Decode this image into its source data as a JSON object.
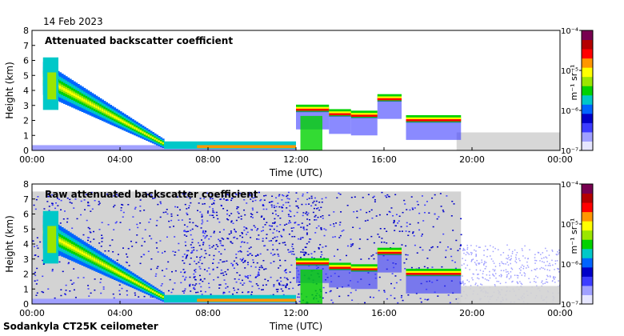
{
  "header": {
    "date": "14 Feb 2023"
  },
  "footer": {
    "instrument": "Sodankyla CT25K ceilometer"
  },
  "colors": {
    "frame": "#000000",
    "noise": "#d3d3d3",
    "colormap": [
      "#e6e6ff",
      "#a0a0ff",
      "#3c3cff",
      "#0000c8",
      "#0064ff",
      "#00c8c8",
      "#00d200",
      "#9be600",
      "#ffff00",
      "#ff9600",
      "#ff0000",
      "#b40000",
      "#780050"
    ]
  },
  "chart_data": [
    {
      "type": "heatmap",
      "title": "Attenuated backscatter coefficient",
      "xlabel": "Time (UTC)",
      "ylabel": "Height (km)",
      "x_ticks": [
        "00:00",
        "04:00",
        "08:00",
        "12:00",
        "16:00",
        "20:00",
        "00:00"
      ],
      "y_ticks": [
        "0",
        "1",
        "2",
        "3",
        "4",
        "5",
        "6",
        "7",
        "8"
      ],
      "ylim": [
        0,
        8
      ],
      "colorbar": {
        "label": "m⁻¹ sr⁻¹",
        "ticks": [
          "10⁻⁷",
          "10⁻⁶",
          "10⁻⁵",
          "10⁻⁴"
        ],
        "scale": "log",
        "range": [
          1e-07,
          0.0001
        ]
      },
      "features": {
        "descending_layer": {
          "t_start_h": 0.5,
          "h_start_km": 4.8,
          "t_end_h": 6.0,
          "h_end_km": 0.4
        },
        "low_layer": {
          "t_start_h": 6.0,
          "t_end_h": 12.0,
          "h_km": 0.3
        },
        "cloud_segments": [
          {
            "t0": 12.0,
            "t1": 13.5,
            "h": 2.7
          },
          {
            "t0": 13.5,
            "t1": 14.5,
            "h": 2.4
          },
          {
            "t0": 14.5,
            "t1": 15.7,
            "h": 2.3
          },
          {
            "t0": 15.7,
            "t1": 16.8,
            "h": 3.4
          },
          {
            "t0": 17.0,
            "t1": 19.5,
            "h": 2.0
          }
        ]
      }
    },
    {
      "type": "heatmap",
      "title": "Raw attenuated backscatter coefficient",
      "xlabel": "Time (UTC)",
      "ylabel": "Height (km)",
      "x_ticks": [
        "00:00",
        "04:00",
        "08:00",
        "12:00",
        "16:00",
        "20:00",
        "00:00"
      ],
      "y_ticks": [
        "0",
        "1",
        "2",
        "3",
        "4",
        "5",
        "6",
        "7",
        "8"
      ],
      "ylim": [
        0,
        8
      ],
      "colorbar": {
        "label": "m⁻¹ sr⁻¹",
        "ticks": [
          "10⁻⁷",
          "10⁻⁶",
          "10⁻⁵",
          "10⁻⁴"
        ],
        "scale": "log",
        "range": [
          1e-07,
          0.0001
        ]
      },
      "features": {
        "descending_layer": {
          "t_start_h": 0.5,
          "h_start_km": 4.8,
          "t_end_h": 6.0,
          "h_end_km": 0.4
        },
        "low_layer": {
          "t_start_h": 6.0,
          "t_end_h": 12.0,
          "h_km": 0.3
        },
        "cloud_segments": [
          {
            "t0": 12.0,
            "t1": 13.5,
            "h": 2.7
          },
          {
            "t0": 13.5,
            "t1": 14.5,
            "h": 2.4
          },
          {
            "t0": 14.5,
            "t1": 15.7,
            "h": 2.3
          },
          {
            "t0": 15.7,
            "t1": 16.8,
            "h": 3.4
          },
          {
            "t0": 17.0,
            "t1": 19.5,
            "h": 2.0
          }
        ],
        "noise_region": {
          "t0": 0.0,
          "t1": 19.5,
          "h_top": 7.5
        }
      }
    }
  ]
}
